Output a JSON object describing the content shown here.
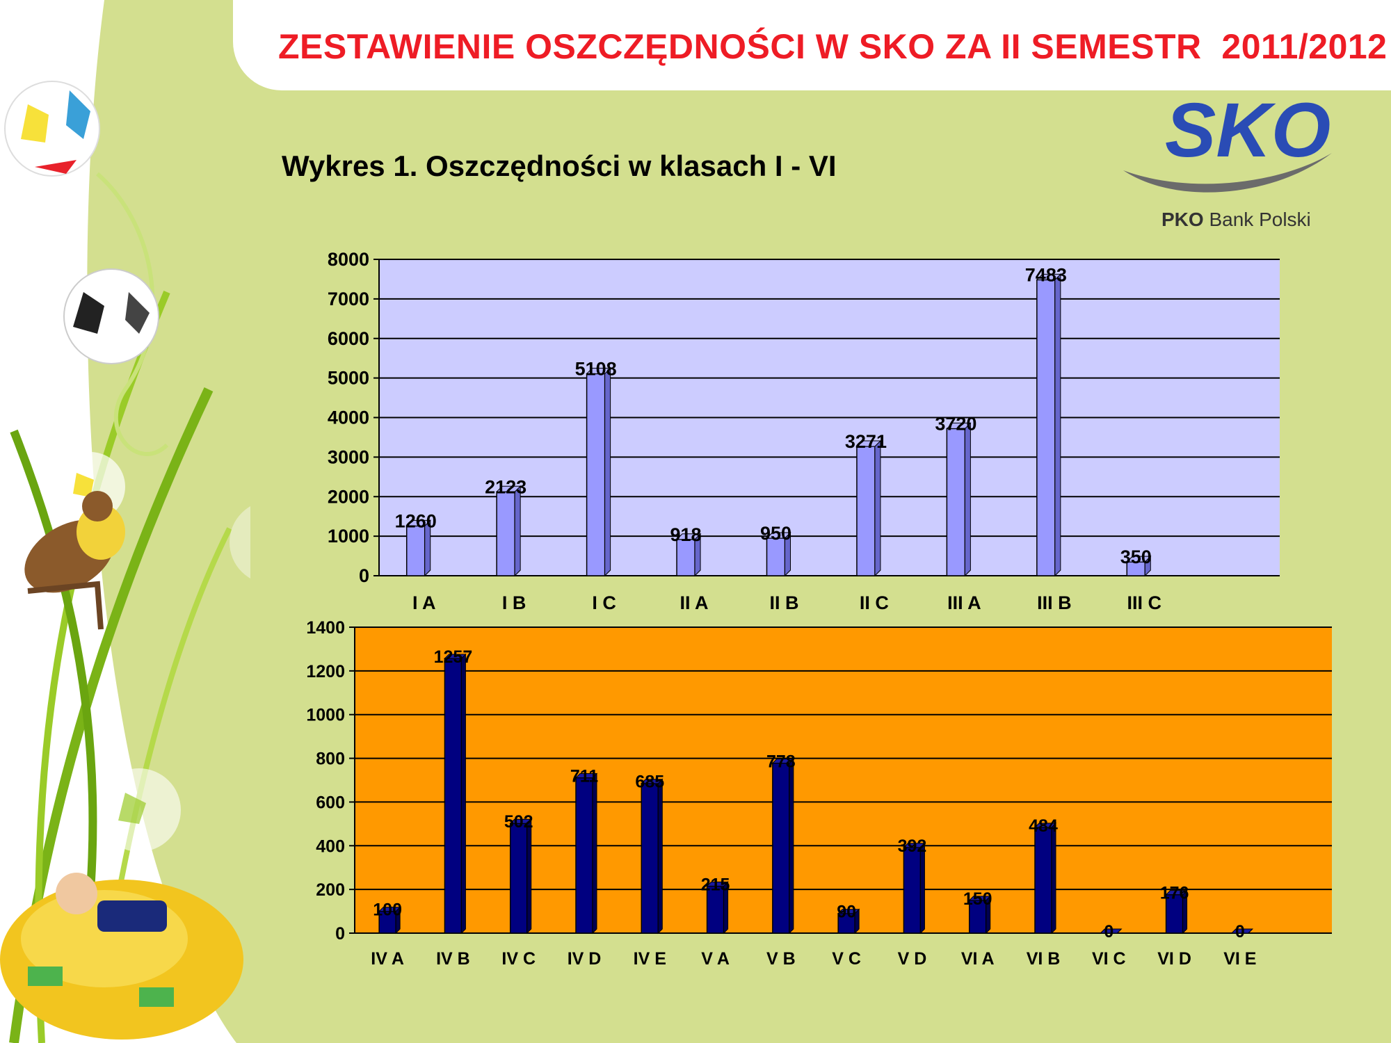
{
  "header": {
    "title": "ZESTAWIENIE OSZCZĘDNOŚCI W SKO ZA II SEMESTR  2011/2012",
    "subtitle": "Wykres 1. Oszczędności w klasach I - VI"
  },
  "logo": {
    "text": "SKO",
    "bank_bold": "PKO",
    "bank_rest": "Bank Polski"
  },
  "colors": {
    "background": "#d3df8f",
    "title": "#ee1c25",
    "chart1_plot": "#ccccff",
    "chart1_bar": "#9999ff",
    "chart2_plot": "#ff9900",
    "chart2_bar": "#000080"
  },
  "chart_data": [
    {
      "type": "bar",
      "title": "",
      "xlabel": "",
      "ylabel": "",
      "categories": [
        "I A",
        "I B",
        "I C",
        "II A",
        "II B",
        "II C",
        "III A",
        "III B",
        "III C"
      ],
      "values": [
        1260,
        2123,
        5108,
        918,
        950,
        3271,
        3720,
        7483,
        350
      ],
      "data_labels": [
        "1260",
        "2123",
        "5108",
        "918",
        "950",
        "3271",
        "3720",
        "7483",
        "350"
      ],
      "ylim": [
        0,
        8000
      ],
      "yticks": [
        "0",
        "1000",
        "2000",
        "3000",
        "4000",
        "5000",
        "6000",
        "7000",
        "8000"
      ],
      "grid": true,
      "legend": "none"
    },
    {
      "type": "bar",
      "title": "",
      "xlabel": "",
      "ylabel": "",
      "categories": [
        "IV A",
        "IV B",
        "IV C",
        "IV D",
        "IV E",
        "V A",
        "V B",
        "V C",
        "V D",
        "VI A",
        "VI B",
        "VI C",
        "VI D",
        "VI E"
      ],
      "values": [
        100,
        1257,
        502,
        711,
        685,
        215,
        778,
        90,
        392,
        150,
        484,
        0,
        176,
        0
      ],
      "data_labels": [
        "100",
        "1257",
        "502",
        "711",
        "685",
        "215",
        "778",
        "90",
        "392",
        "150",
        "484",
        "0",
        "176",
        "0"
      ],
      "ylim": [
        0,
        1400
      ],
      "yticks": [
        "0",
        "200",
        "400",
        "600",
        "800",
        "1000",
        "1200",
        "1400"
      ],
      "grid": true,
      "legend": "none"
    }
  ]
}
